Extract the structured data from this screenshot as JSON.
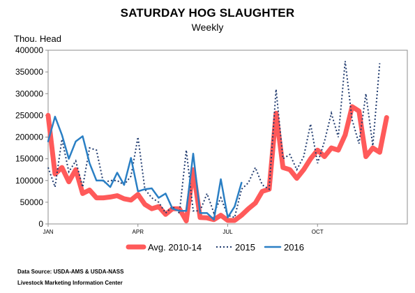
{
  "chart_data": {
    "type": "line",
    "title": "SATURDAY HOG SLAUGHTER",
    "subtitle": "Weekly",
    "ylabel": "Thou. Head",
    "xlabel": "",
    "ylim": [
      0,
      400000
    ],
    "yticks": [
      "0",
      "50000",
      "100000",
      "150000",
      "200000",
      "250000",
      "300000",
      "350000",
      "400000"
    ],
    "xlim": [
      1,
      53
    ],
    "xticks": [
      {
        "week": 1,
        "label": "JAN"
      },
      {
        "week": 14,
        "label": "APR"
      },
      {
        "week": 27,
        "label": "JUL"
      },
      {
        "week": 40,
        "label": "OCT"
      }
    ],
    "grid": false,
    "legend_position": "bottom",
    "series": [
      {
        "name": "Avg. 2010-14",
        "color": "#ff5a5a",
        "style": "solid-thick",
        "x": [
          1,
          2,
          3,
          4,
          5,
          6,
          7,
          8,
          9,
          10,
          11,
          12,
          13,
          14,
          15,
          16,
          17,
          18,
          19,
          20,
          21,
          22,
          23,
          24,
          25,
          26,
          27,
          28,
          29,
          30,
          31,
          32,
          33,
          34,
          35,
          36,
          37,
          38,
          39,
          40,
          41,
          42,
          43,
          44,
          45,
          46,
          47,
          48,
          49,
          50,
          51,
          52,
          53
        ],
        "values": [
          250000,
          115000,
          130000,
          97000,
          125000,
          70000,
          78000,
          60000,
          60000,
          62000,
          65000,
          58000,
          55000,
          68000,
          45000,
          35000,
          40000,
          22000,
          35000,
          35000,
          7000,
          125000,
          15000,
          14000,
          10000,
          20000,
          8000,
          8000,
          20000,
          35000,
          48000,
          75000,
          80000,
          255000,
          130000,
          125000,
          105000,
          125000,
          150000,
          170000,
          155000,
          175000,
          170000,
          205000,
          270000,
          260000,
          155000,
          175000,
          165000,
          245000,
          null,
          null,
          null
        ]
      },
      {
        "name": "2015",
        "color": "#1f3a6e",
        "style": "dotted",
        "x": [
          1,
          2,
          3,
          4,
          5,
          6,
          7,
          8,
          9,
          10,
          11,
          12,
          13,
          14,
          15,
          16,
          17,
          18,
          19,
          20,
          21,
          22,
          23,
          24,
          25,
          26,
          27,
          28,
          29,
          30,
          31,
          32,
          33,
          34,
          35,
          36,
          37,
          38,
          39,
          40,
          41,
          42,
          43,
          44,
          45,
          46,
          47,
          48,
          49,
          50,
          51,
          52,
          53
        ],
        "values": [
          130000,
          85000,
          195000,
          120000,
          145000,
          85000,
          175000,
          170000,
          95000,
          100000,
          100000,
          90000,
          110000,
          200000,
          80000,
          60000,
          50000,
          25000,
          40000,
          25000,
          170000,
          30000,
          30000,
          70000,
          25000,
          60000,
          20000,
          15000,
          80000,
          95000,
          130000,
          90000,
          80000,
          310000,
          150000,
          160000,
          125000,
          155000,
          230000,
          140000,
          190000,
          255000,
          200000,
          375000,
          240000,
          185000,
          300000,
          180000,
          370000,
          null,
          null,
          null,
          null
        ]
      },
      {
        "name": "2016",
        "color": "#2a7fc4",
        "style": "solid",
        "x": [
          1,
          2,
          3,
          4,
          5,
          6,
          7,
          8,
          9,
          10,
          11,
          12,
          13,
          14,
          15,
          16,
          17,
          18,
          19,
          20,
          21,
          22,
          23,
          24,
          25,
          26,
          27,
          28,
          29
        ],
        "values": [
          190000,
          247000,
          205000,
          150000,
          190000,
          202000,
          140000,
          100000,
          100000,
          85000,
          118000,
          90000,
          152000,
          75000,
          80000,
          82000,
          60000,
          70000,
          35000,
          30000,
          30000,
          162000,
          25000,
          25000,
          10000,
          103000,
          15000,
          40000,
          95000
        ]
      }
    ]
  },
  "source": {
    "line1": "Data Source: USDA-AMS & USDA-NASS",
    "line2": "Livestock Marketing Information Center"
  }
}
